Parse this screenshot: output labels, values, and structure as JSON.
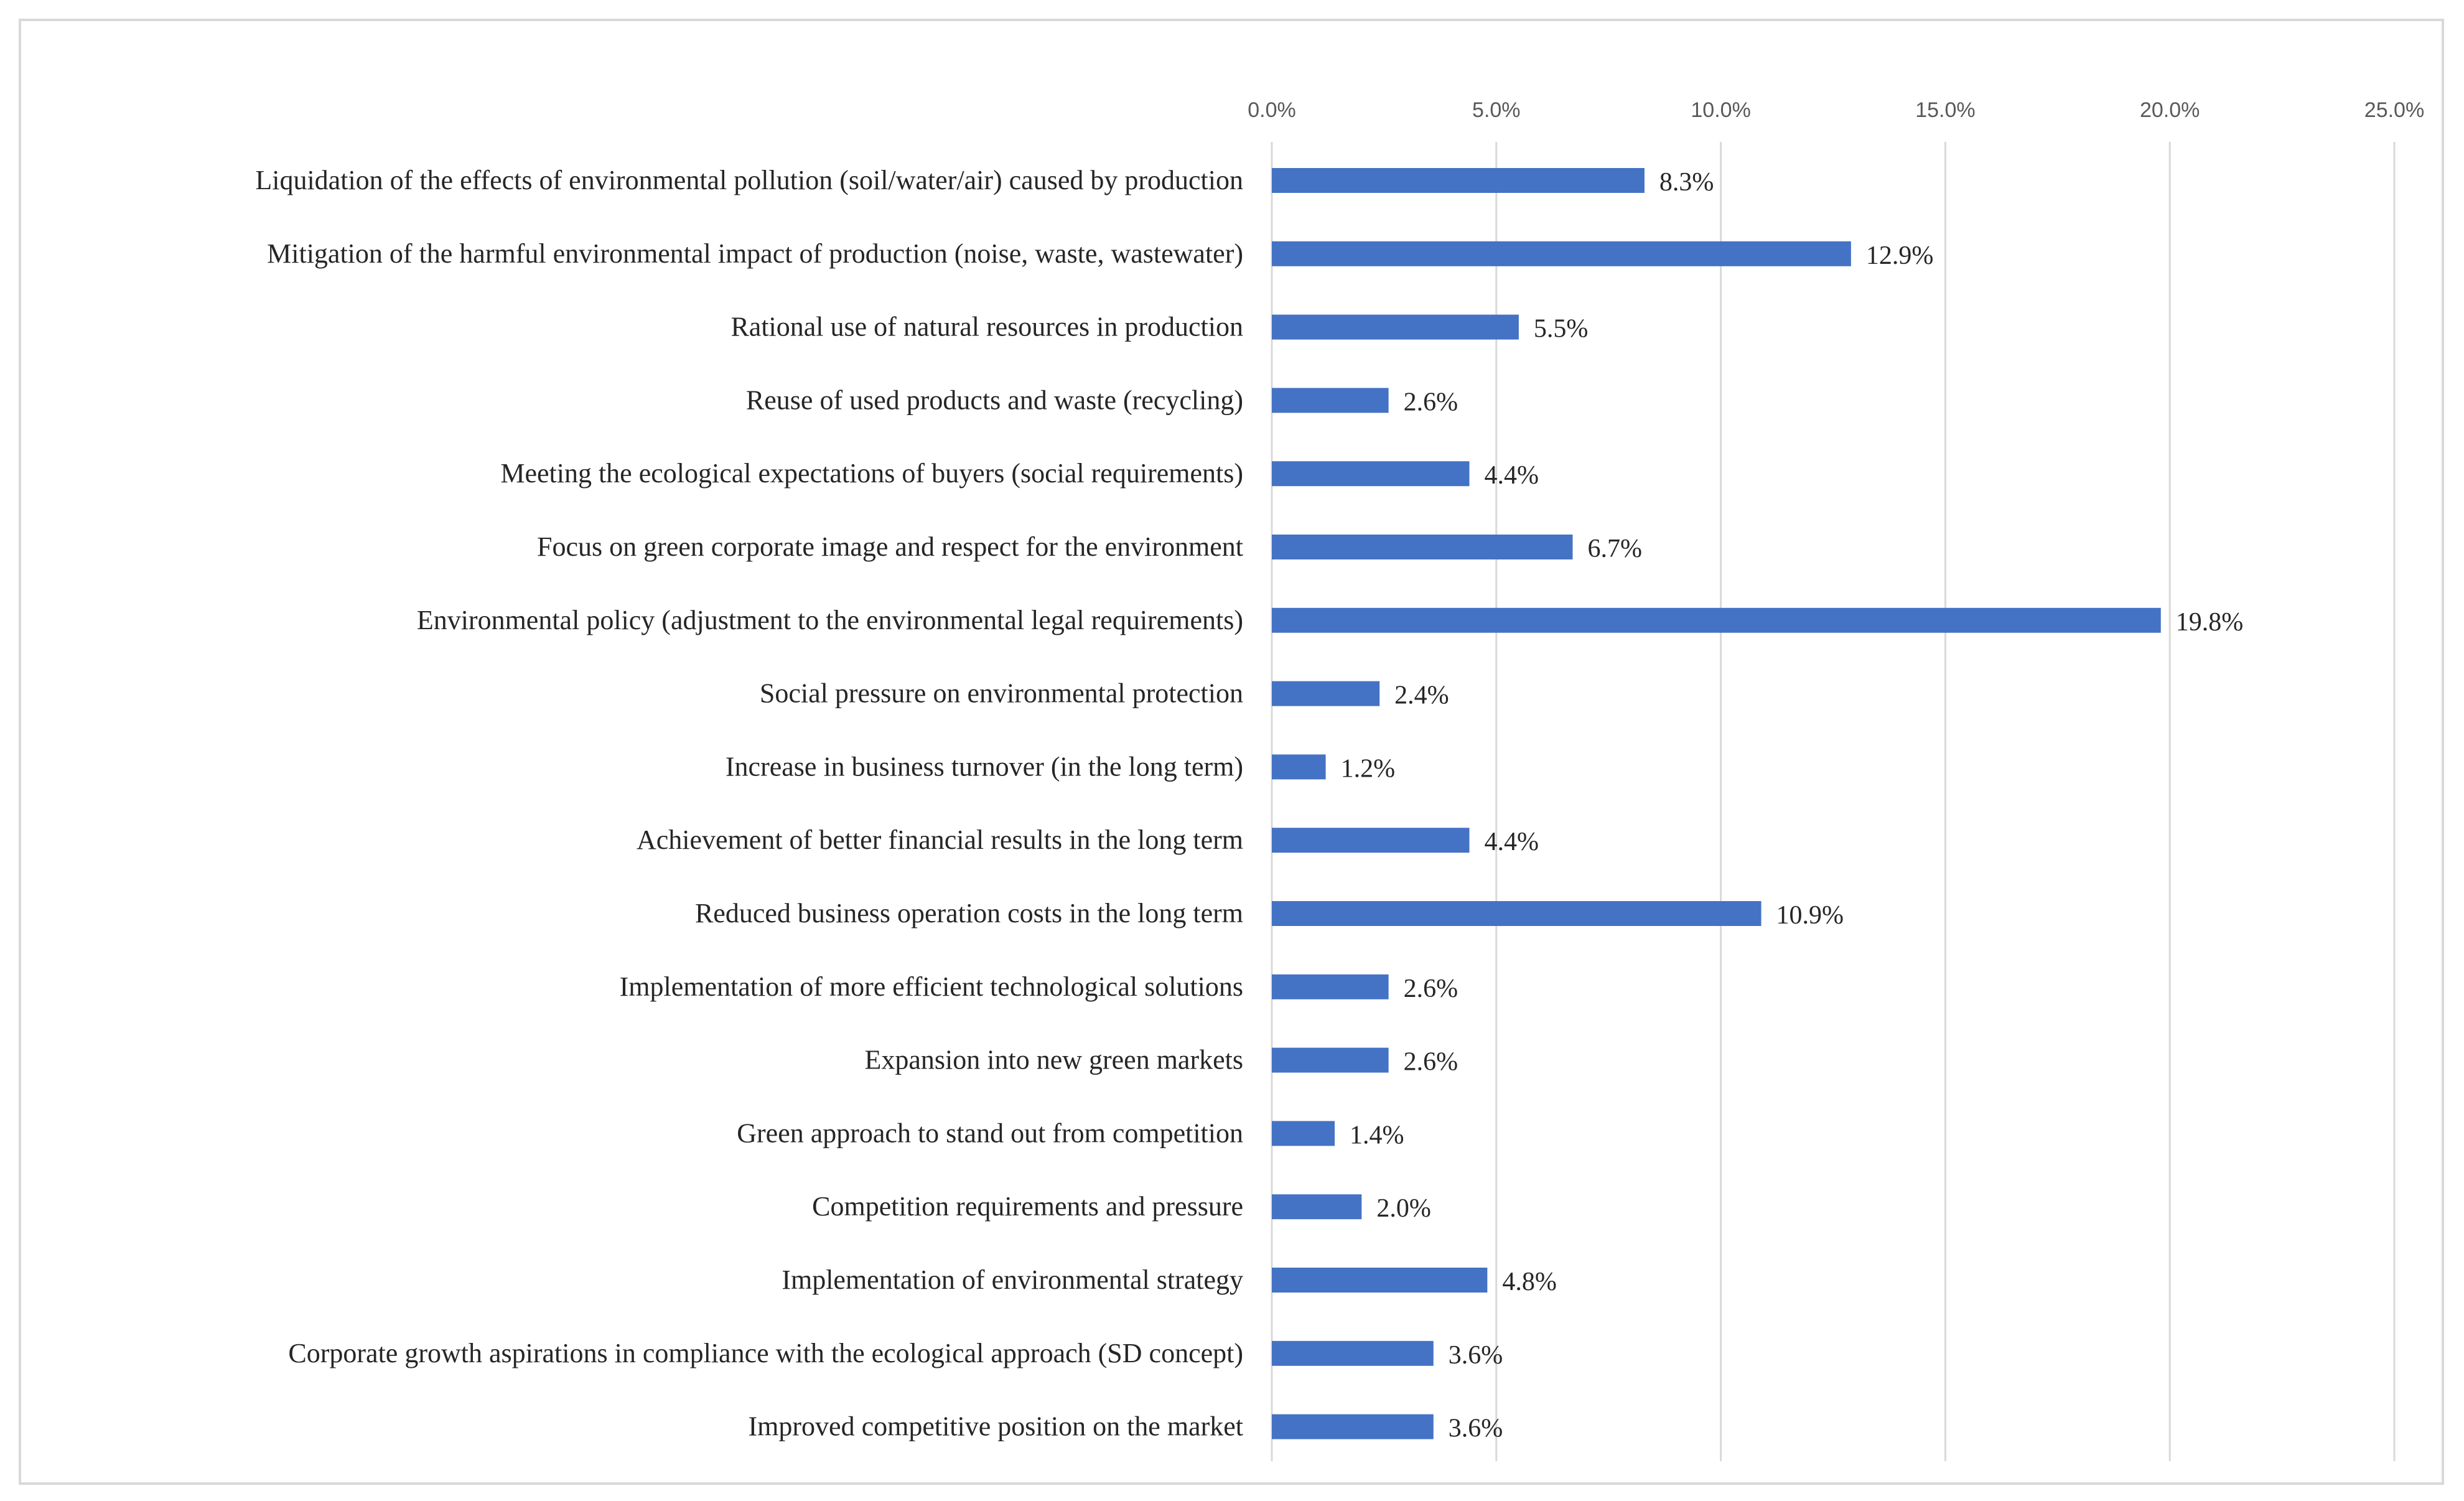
{
  "chart_data": {
    "type": "bar",
    "orientation": "horizontal",
    "title": "",
    "xlabel": "",
    "ylabel": "",
    "xlim": [
      0,
      25
    ],
    "x_ticks": [
      0,
      5,
      10,
      15,
      20,
      25
    ],
    "x_tick_labels": [
      "0.0%",
      "5.0%",
      "10.0%",
      "15.0%",
      "20.0%",
      "25.0%"
    ],
    "axis_position": "top",
    "grid": true,
    "bar_color": "#4472C4",
    "gridline_color": "#D9D9D9",
    "categories": [
      "Liquidation of the effects of environmental pollution (soil/water/air) caused by production",
      "Mitigation of the harmful environmental impact of production (noise, waste, wastewater)",
      "Rational use of natural resources in production",
      "Reuse of used products and waste (recycling)",
      "Meeting the ecological expectations of buyers (social requirements)",
      "Focus on green corporate image and respect for the environment",
      "Environmental policy (adjustment to the environmental legal requirements)",
      "Social pressure on environmental protection",
      "Increase in business turnover (in the long term)",
      "Achievement of better financial results in the long term",
      "Reduced business operation costs in the long term",
      "Implementation of more efficient technological solutions",
      "Expansion into new green markets",
      "Green approach to stand out from competition",
      "Competition requirements and pressure",
      "Implementation of environmental strategy",
      "Corporate growth aspirations in compliance with the ecological approach (SD concept)",
      "Improved competitive position on the market"
    ],
    "values": [
      8.3,
      12.9,
      5.5,
      2.6,
      4.4,
      6.7,
      19.8,
      2.4,
      1.2,
      4.4,
      10.9,
      2.6,
      2.6,
      1.4,
      2.0,
      4.8,
      3.6,
      3.6
    ],
    "value_labels": [
      "8.3%",
      "12.9%",
      "5.5%",
      "2.6%",
      "4.4%",
      "6.7%",
      "19.8%",
      "2.4%",
      "1.2%",
      "4.4%",
      "10.9%",
      "2.6%",
      "2.6%",
      "1.4%",
      "2.0%",
      "4.8%",
      "3.6%",
      "3.6%"
    ]
  }
}
